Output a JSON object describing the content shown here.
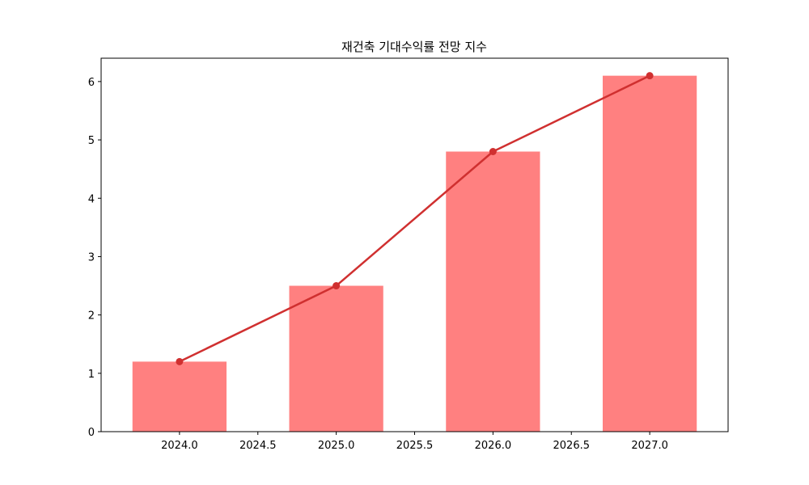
{
  "chart_data": {
    "type": "bar",
    "title": "재건축 기대수익률 전망 지수",
    "xlabel": "",
    "ylabel": "",
    "x": [
      2024,
      2025,
      2026,
      2027
    ],
    "values": [
      1.2,
      2.5,
      4.8,
      6.1
    ],
    "series": [
      {
        "type": "bar",
        "values": [
          1.2,
          2.5,
          4.8,
          6.1
        ],
        "color": "#ff8080"
      },
      {
        "type": "line",
        "values": [
          1.2,
          2.5,
          4.8,
          6.1
        ],
        "color": "#d03030",
        "marker": "circle"
      }
    ],
    "xlim": [
      2023.5,
      2027.5
    ],
    "ylim": [
      0,
      6.4
    ],
    "xticks": [
      "2024.0",
      "2024.5",
      "2025.0",
      "2025.5",
      "2026.0",
      "2026.5",
      "2027.0"
    ],
    "yticks": [
      "0",
      "1",
      "2",
      "3",
      "4",
      "5",
      "6"
    ],
    "grid": false,
    "legend": "none"
  }
}
